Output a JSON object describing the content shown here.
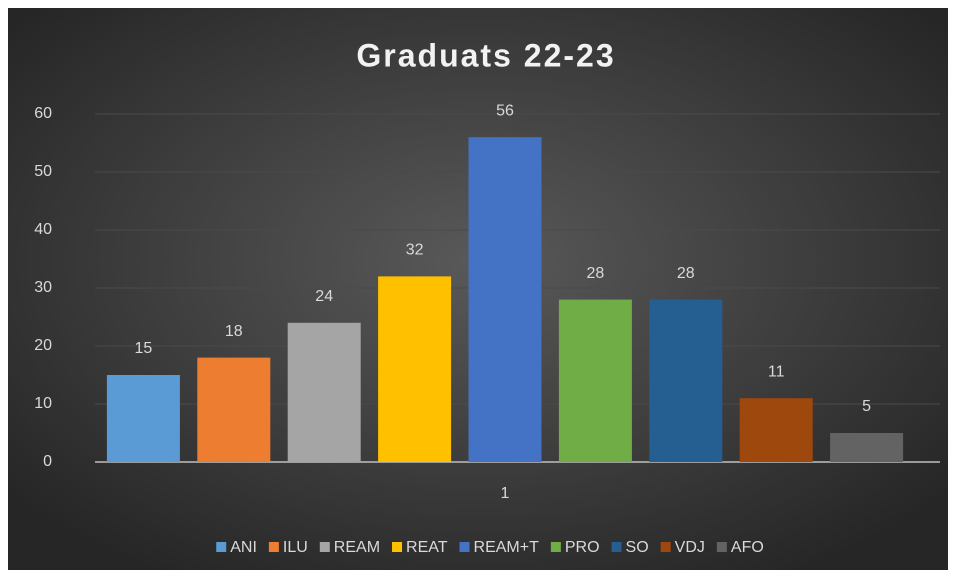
{
  "chart_data": {
    "type": "bar",
    "title": "Graduats 22-23",
    "categories": [
      "1"
    ],
    "series": [
      {
        "name": "ANI",
        "color": "#5b9bd5",
        "values": [
          15
        ]
      },
      {
        "name": "ILU",
        "color": "#ed7d31",
        "values": [
          18
        ]
      },
      {
        "name": "REAM",
        "color": "#a5a5a5",
        "values": [
          24
        ]
      },
      {
        "name": "REAT",
        "color": "#ffc000",
        "values": [
          32
        ]
      },
      {
        "name": "REAM+T",
        "color": "#4472c4",
        "values": [
          56
        ]
      },
      {
        "name": "PRO",
        "color": "#70ad47",
        "values": [
          28
        ]
      },
      {
        "name": "SO",
        "color": "#255e91",
        "values": [
          28
        ]
      },
      {
        "name": "VDJ",
        "color": "#9e480e",
        "values": [
          11
        ]
      },
      {
        "name": "AFO",
        "color": "#636363",
        "values": [
          5
        ]
      }
    ],
    "ylim": [
      0,
      60
    ],
    "yticks": [
      0,
      10,
      20,
      30,
      40,
      50,
      60
    ],
    "grid": true,
    "legend": "bottom"
  }
}
